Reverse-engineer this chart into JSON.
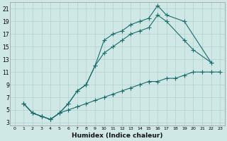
{
  "xlabel": "Humidex (Indice chaleur)",
  "bg_color": "#cfe8e6",
  "grid_color": "#afd0ce",
  "line_color": "#1a6b6b",
  "xlim": [
    -0.5,
    23.5
  ],
  "ylim": [
    2.5,
    22
  ],
  "xticks": [
    0,
    1,
    2,
    3,
    4,
    5,
    6,
    7,
    8,
    9,
    10,
    11,
    12,
    13,
    14,
    15,
    16,
    17,
    18,
    19,
    20,
    21,
    22,
    23
  ],
  "yticks": [
    3,
    5,
    7,
    9,
    11,
    13,
    15,
    17,
    19,
    21
  ],
  "line1_x": [
    1,
    2,
    3,
    4,
    5,
    6,
    7,
    8,
    9,
    10,
    11,
    12,
    13,
    14,
    15,
    16,
    17,
    19,
    22
  ],
  "line1_y": [
    6,
    4.5,
    4,
    3.5,
    4.5,
    6,
    8,
    9,
    12,
    16,
    17,
    17.5,
    18.5,
    19,
    19.5,
    21.5,
    20,
    19,
    12.5
  ],
  "line2_x": [
    1,
    2,
    3,
    4,
    5,
    6,
    7,
    8,
    9,
    10,
    11,
    12,
    13,
    14,
    15,
    16,
    17,
    19,
    20,
    22
  ],
  "line2_y": [
    6,
    4.5,
    4,
    3.5,
    4.5,
    6,
    8,
    9,
    12,
    14,
    15,
    16,
    17,
    17.5,
    18,
    20,
    19,
    16,
    14.5,
    12.5
  ],
  "line3_x": [
    1,
    2,
    3,
    4,
    5,
    6,
    7,
    8,
    9,
    10,
    11,
    12,
    13,
    14,
    15,
    16,
    17,
    18,
    19,
    20,
    21,
    22,
    23
  ],
  "line3_y": [
    6,
    4.5,
    4,
    3.5,
    4.5,
    5,
    5.5,
    6,
    6.5,
    7,
    7.5,
    8,
    8.5,
    9,
    9.5,
    9.5,
    10,
    10,
    10.5,
    11,
    11,
    11,
    11
  ],
  "markersize": 2.5
}
